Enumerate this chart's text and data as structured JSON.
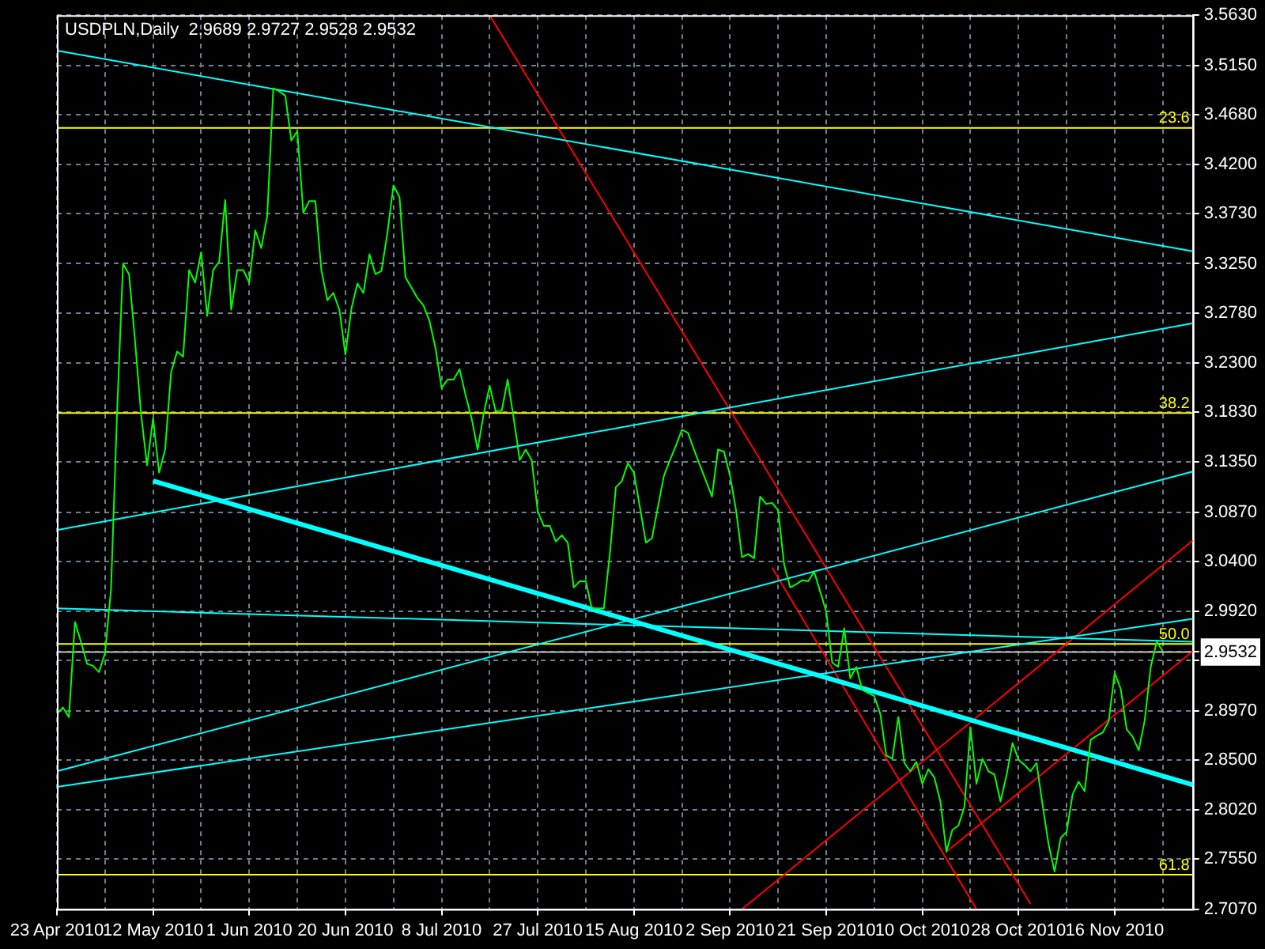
{
  "chart_data": {
    "type": "line",
    "title": "USDPLN,Daily  2.9689 2.9727 2.9528 2.9532",
    "categories": [
      "23 Apr 2010",
      null,
      null,
      null,
      null,
      null,
      null,
      null,
      null,
      null,
      null,
      null,
      null,
      null,
      null,
      null,
      "12 May 2010",
      null,
      null,
      null,
      null,
      null,
      null,
      null,
      null,
      null,
      null,
      null,
      null,
      null,
      null,
      null,
      "1 Jun 2010",
      null,
      null,
      null,
      null,
      null,
      null,
      null,
      null,
      null,
      null,
      null,
      null,
      null,
      null,
      null,
      "20 Jun 2010",
      null,
      null,
      null,
      null,
      null,
      null,
      null,
      null,
      null,
      null,
      null,
      null,
      null,
      null,
      null,
      "8 Jul 2010",
      null,
      null,
      null,
      null,
      null,
      null,
      null,
      null,
      null,
      null,
      null,
      null,
      null,
      null,
      null,
      "27 Jul 2010",
      null,
      null,
      null,
      null,
      null,
      null,
      null,
      null,
      null,
      null,
      null,
      null,
      null,
      null,
      null,
      "15 Aug 2010",
      null,
      null,
      null,
      null,
      null,
      null,
      null,
      null,
      null,
      null,
      null,
      null,
      null,
      null,
      null,
      "2 Sep 2010",
      null,
      null,
      null,
      null,
      null,
      null,
      null,
      null,
      null,
      null,
      null,
      null,
      null,
      null,
      null,
      "21 Sep 2010",
      null,
      null,
      null,
      null,
      null,
      null,
      null,
      null,
      null,
      null,
      null,
      null,
      null,
      null,
      null,
      "10 Oct 2010",
      null,
      null,
      null,
      null,
      null,
      null,
      null,
      null,
      null,
      null,
      null,
      null,
      null,
      null,
      null,
      "28 Oct 2010",
      null,
      null,
      null,
      null,
      null,
      null,
      null,
      null,
      null,
      null,
      null,
      null,
      null,
      null,
      null,
      "16 Nov 2010",
      null,
      null,
      null,
      null,
      null,
      null,
      null,
      null,
      null,
      null,
      null,
      null,
      null
    ],
    "ylim": [
      2.707,
      3.563
    ],
    "yticks": [
      {
        "value": 2.707,
        "label": "2.7070"
      },
      {
        "value": 2.755,
        "label": "2.7550"
      },
      {
        "value": 2.802,
        "label": "2.8020"
      },
      {
        "value": 2.85,
        "label": "2.8500"
      },
      {
        "value": 2.897,
        "label": "2.8970"
      },
      {
        "value": 2.945,
        "label": null
      },
      {
        "value": 2.9532,
        "label": "2.9532"
      },
      {
        "value": 2.992,
        "label": "2.9920"
      },
      {
        "value": 3.04,
        "label": "3.0400"
      },
      {
        "value": 3.087,
        "label": "3.0870"
      },
      {
        "value": 3.135,
        "label": "3.1350"
      },
      {
        "value": 3.183,
        "label": "3.1830"
      },
      {
        "value": 3.23,
        "label": "3.2300"
      },
      {
        "value": 3.278,
        "label": "3.2780"
      },
      {
        "value": 3.325,
        "label": "3.3250"
      },
      {
        "value": 3.373,
        "label": "3.3730"
      },
      {
        "value": 3.42,
        "label": "3.4200"
      },
      {
        "value": 3.468,
        "label": "3.4680"
      },
      {
        "value": 3.515,
        "label": "3.5150"
      },
      {
        "value": 3.563,
        "label": "3.5630"
      }
    ],
    "grid": true,
    "marker": "none",
    "line_style": "solid",
    "series": [
      {
        "color": "#00ff00",
        "values": [
          2.894,
          2.9,
          2.891,
          2.982,
          2.963,
          2.942,
          2.94,
          2.934,
          2.952,
          3.013,
          3.181,
          3.325,
          3.315,
          3.251,
          3.181,
          3.132,
          3.177,
          3.125,
          3.147,
          3.221,
          3.241,
          3.236,
          3.319,
          3.307,
          3.336,
          3.275,
          3.319,
          3.327,
          3.386,
          3.281,
          3.319,
          3.319,
          3.307,
          3.357,
          3.34,
          3.371,
          3.493,
          3.49,
          3.486,
          3.443,
          3.452,
          3.374,
          3.385,
          3.385,
          3.319,
          3.29,
          3.297,
          3.281,
          3.238,
          3.282,
          3.306,
          3.297,
          3.334,
          3.315,
          3.318,
          3.355,
          3.4,
          3.389,
          3.312,
          3.302,
          3.292,
          3.285,
          3.27,
          3.244,
          3.206,
          3.214,
          3.214,
          3.224,
          3.199,
          3.177,
          3.147,
          3.181,
          3.208,
          3.184,
          3.184,
          3.214,
          3.177,
          3.137,
          3.147,
          3.137,
          3.088,
          3.074,
          3.074,
          3.059,
          3.065,
          3.058,
          3.015,
          3.021,
          3.021,
          2.995,
          2.995,
          2.995,
          3.047,
          3.111,
          3.117,
          3.134,
          3.125,
          3.092,
          3.058,
          3.062,
          3.092,
          3.122,
          3.137,
          3.151,
          3.166,
          3.163,
          3.147,
          3.132,
          3.117,
          3.102,
          3.147,
          3.145,
          3.122,
          3.089,
          3.044,
          3.047,
          3.043,
          3.102,
          3.095,
          3.096,
          3.089,
          3.037,
          3.015,
          3.018,
          3.022,
          3.021,
          3.03,
          3.011,
          2.992,
          2.943,
          2.939,
          2.976,
          2.928,
          2.939,
          2.917,
          2.914,
          2.911,
          2.894,
          2.854,
          2.851,
          2.891,
          2.847,
          2.839,
          2.848,
          2.827,
          2.841,
          2.833,
          2.81,
          2.762,
          2.783,
          2.787,
          2.805,
          2.881,
          2.827,
          2.851,
          2.839,
          2.836,
          2.81,
          2.835,
          2.866,
          2.85,
          2.845,
          2.839,
          2.847,
          2.807,
          2.769,
          2.743,
          2.775,
          2.781,
          2.817,
          2.829,
          2.82,
          2.869,
          2.873,
          2.876,
          2.887,
          2.933,
          2.918,
          2.879,
          2.872,
          2.859,
          2.888,
          2.939,
          2.963,
          2.954,
          null,
          null,
          null,
          null,
          null
        ]
      },
      {
        "color": "#00ffff",
        "values": [
          3.529,
          null,
          null,
          null,
          null,
          null,
          null,
          null,
          null,
          null,
          null,
          null,
          null,
          null,
          null,
          null,
          null,
          null,
          null,
          null,
          null,
          null,
          null,
          null,
          null,
          null,
          null,
          null,
          null,
          null,
          null,
          null,
          null,
          null,
          null,
          null,
          null,
          null,
          null,
          null,
          null,
          null,
          null,
          null,
          null,
          null,
          null,
          null,
          null,
          null,
          null,
          null,
          null,
          null,
          null,
          null,
          null,
          null,
          null,
          null,
          null,
          null,
          null,
          null,
          null,
          null,
          null,
          null,
          null,
          null,
          null,
          null,
          null,
          null,
          null,
          null,
          null,
          null,
          null,
          null,
          null,
          null,
          null,
          null,
          null,
          null,
          null,
          null,
          null,
          null,
          null,
          null,
          null,
          null,
          null,
          null,
          null,
          null,
          null,
          null,
          null,
          null,
          null,
          null,
          null,
          null,
          null,
          null,
          null,
          null,
          null,
          null,
          null,
          null,
          null,
          null,
          null,
          null,
          null,
          null,
          null,
          null,
          null,
          null,
          null,
          null,
          null,
          null,
          null,
          null,
          null,
          null,
          null,
          null,
          null,
          null,
          null,
          null,
          null,
          null,
          null,
          null,
          null,
          null,
          null,
          null,
          null,
          null,
          null,
          null,
          null,
          null,
          null,
          null,
          null,
          null,
          null,
          null,
          null,
          null,
          null,
          null,
          null,
          null,
          null,
          null,
          null,
          null,
          null,
          null,
          null,
          null,
          null,
          null,
          null,
          null,
          null,
          null,
          null,
          null,
          null,
          null,
          null,
          null,
          null,
          null,
          null,
          null,
          null,
          3.337
        ]
      },
      {
        "color": "#00ffff",
        "values": [
          3.07,
          null,
          null,
          null,
          null,
          null,
          null,
          null,
          null,
          null,
          null,
          null,
          null,
          null,
          null,
          null,
          null,
          null,
          null,
          null,
          null,
          null,
          null,
          null,
          null,
          null,
          null,
          null,
          null,
          null,
          null,
          null,
          null,
          null,
          null,
          null,
          null,
          null,
          null,
          null,
          null,
          null,
          null,
          null,
          null,
          null,
          null,
          null,
          null,
          null,
          null,
          null,
          null,
          null,
          null,
          null,
          null,
          null,
          null,
          null,
          null,
          null,
          null,
          null,
          null,
          null,
          null,
          null,
          null,
          null,
          null,
          null,
          null,
          null,
          null,
          null,
          null,
          null,
          null,
          null,
          null,
          null,
          null,
          null,
          null,
          null,
          null,
          null,
          null,
          null,
          null,
          null,
          null,
          null,
          null,
          null,
          null,
          null,
          null,
          null,
          null,
          null,
          null,
          null,
          null,
          null,
          null,
          null,
          null,
          null,
          null,
          null,
          null,
          null,
          null,
          null,
          null,
          null,
          null,
          null,
          null,
          null,
          null,
          null,
          null,
          null,
          null,
          null,
          null,
          null,
          null,
          null,
          null,
          null,
          null,
          null,
          null,
          null,
          null,
          null,
          null,
          null,
          null,
          null,
          null,
          null,
          null,
          null,
          null,
          null,
          null,
          null,
          null,
          null,
          null,
          null,
          null,
          null,
          null,
          null,
          null,
          null,
          null,
          null,
          null,
          null,
          null,
          null,
          null,
          null,
          null,
          null,
          null,
          null,
          null,
          null,
          null,
          null,
          null,
          null,
          null,
          null,
          null,
          null,
          null,
          null,
          null,
          null,
          null,
          3.268
        ]
      },
      {
        "color": "#00ffff",
        "values": [
          null,
          null,
          null,
          null,
          null,
          null,
          null,
          null,
          null,
          null,
          null,
          null,
          null,
          null,
          null,
          null,
          3.117,
          null,
          null,
          null,
          null,
          null,
          null,
          null,
          null,
          null,
          null,
          null,
          null,
          null,
          null,
          null,
          null,
          null,
          null,
          null,
          null,
          null,
          null,
          null,
          null,
          null,
          null,
          null,
          null,
          null,
          null,
          null,
          null,
          null,
          null,
          null,
          null,
          null,
          null,
          null,
          null,
          null,
          null,
          null,
          null,
          null,
          null,
          null,
          null,
          null,
          null,
          null,
          null,
          null,
          null,
          null,
          null,
          null,
          null,
          null,
          null,
          null,
          null,
          null,
          null,
          null,
          null,
          null,
          null,
          null,
          null,
          null,
          null,
          null,
          null,
          null,
          null,
          null,
          null,
          null,
          null,
          null,
          null,
          null,
          null,
          null,
          null,
          null,
          null,
          null,
          null,
          null,
          null,
          null,
          null,
          null,
          null,
          null,
          null,
          null,
          null,
          null,
          null,
          null,
          null,
          null,
          null,
          null,
          null,
          null,
          null,
          null,
          null,
          null,
          null,
          null,
          null,
          null,
          null,
          null,
          null,
          null,
          null,
          null,
          null,
          null,
          null,
          null,
          null,
          null,
          null,
          null,
          null,
          null,
          null,
          null,
          null,
          null,
          null,
          null,
          null,
          null,
          null,
          null,
          null,
          null,
          null,
          null,
          null,
          null,
          null,
          null,
          null,
          null,
          null,
          null,
          null,
          null,
          null,
          null,
          null,
          null,
          null,
          null,
          null,
          null,
          null,
          null,
          null,
          null,
          null,
          null,
          null,
          2.826
        ]
      },
      {
        "color": "#00ffff",
        "values": [
          2.995,
          null,
          null,
          null,
          null,
          null,
          null,
          null,
          null,
          null,
          null,
          null,
          null,
          null,
          null,
          null,
          null,
          null,
          null,
          null,
          null,
          null,
          null,
          null,
          null,
          null,
          null,
          null,
          null,
          null,
          null,
          null,
          null,
          null,
          null,
          null,
          null,
          null,
          null,
          null,
          null,
          null,
          null,
          null,
          null,
          null,
          null,
          null,
          null,
          null,
          null,
          null,
          null,
          null,
          null,
          null,
          null,
          null,
          null,
          null,
          null,
          null,
          null,
          null,
          null,
          null,
          null,
          null,
          null,
          null,
          null,
          null,
          null,
          null,
          null,
          null,
          null,
          null,
          null,
          null,
          null,
          null,
          null,
          null,
          null,
          null,
          null,
          null,
          null,
          null,
          null,
          null,
          null,
          null,
          null,
          null,
          null,
          null,
          null,
          null,
          null,
          null,
          null,
          null,
          null,
          null,
          null,
          null,
          null,
          null,
          null,
          null,
          null,
          null,
          null,
          null,
          null,
          null,
          null,
          null,
          null,
          null,
          null,
          null,
          null,
          null,
          null,
          null,
          null,
          null,
          null,
          null,
          null,
          null,
          null,
          null,
          null,
          null,
          null,
          null,
          null,
          null,
          null,
          null,
          null,
          null,
          null,
          null,
          null,
          null,
          null,
          null,
          null,
          null,
          null,
          null,
          null,
          null,
          null,
          null,
          null,
          null,
          null,
          null,
          null,
          null,
          null,
          null,
          null,
          null,
          null,
          null,
          null,
          null,
          null,
          null,
          null,
          null,
          null,
          null,
          null,
          null,
          null,
          null,
          null,
          null,
          null,
          null,
          null,
          2.963
        ]
      },
      {
        "color": "#00ffff",
        "values": [
          2.839,
          null,
          null,
          null,
          null,
          null,
          null,
          null,
          null,
          null,
          null,
          null,
          null,
          null,
          null,
          null,
          null,
          null,
          null,
          null,
          null,
          null,
          null,
          null,
          null,
          null,
          null,
          null,
          null,
          null,
          null,
          null,
          null,
          null,
          null,
          null,
          null,
          null,
          null,
          null,
          null,
          null,
          null,
          null,
          null,
          null,
          null,
          null,
          null,
          null,
          null,
          null,
          null,
          null,
          null,
          null,
          null,
          null,
          null,
          null,
          null,
          null,
          null,
          null,
          null,
          null,
          null,
          null,
          null,
          null,
          null,
          null,
          null,
          null,
          null,
          null,
          null,
          null,
          null,
          null,
          null,
          null,
          null,
          null,
          null,
          null,
          null,
          null,
          null,
          null,
          null,
          null,
          null,
          null,
          null,
          null,
          null,
          null,
          null,
          null,
          null,
          null,
          null,
          null,
          null,
          null,
          null,
          null,
          null,
          null,
          null,
          null,
          null,
          null,
          null,
          null,
          null,
          null,
          null,
          null,
          null,
          null,
          null,
          null,
          null,
          null,
          null,
          null,
          null,
          null,
          null,
          null,
          null,
          null,
          null,
          null,
          null,
          null,
          null,
          null,
          null,
          null,
          null,
          null,
          null,
          null,
          null,
          null,
          null,
          null,
          null,
          null,
          null,
          null,
          null,
          null,
          null,
          null,
          null,
          null,
          null,
          null,
          null,
          null,
          null,
          null,
          null,
          null,
          null,
          null,
          null,
          null,
          null,
          null,
          null,
          null,
          null,
          null,
          null,
          null,
          null,
          null,
          null,
          null,
          null,
          null,
          null,
          null,
          null,
          3.126
        ]
      },
      {
        "color": "#00ffff",
        "values": [
          2.824,
          null,
          null,
          null,
          null,
          null,
          null,
          null,
          null,
          null,
          null,
          null,
          null,
          null,
          null,
          null,
          null,
          null,
          null,
          null,
          null,
          null,
          null,
          null,
          null,
          null,
          null,
          null,
          null,
          null,
          null,
          null,
          null,
          null,
          null,
          null,
          null,
          null,
          null,
          null,
          null,
          null,
          null,
          null,
          null,
          null,
          null,
          null,
          null,
          null,
          null,
          null,
          null,
          null,
          null,
          null,
          null,
          null,
          null,
          null,
          null,
          null,
          null,
          null,
          null,
          null,
          null,
          null,
          null,
          null,
          null,
          null,
          null,
          null,
          null,
          null,
          null,
          null,
          null,
          null,
          null,
          null,
          null,
          null,
          null,
          null,
          null,
          null,
          null,
          null,
          null,
          null,
          null,
          null,
          null,
          null,
          null,
          null,
          null,
          null,
          null,
          null,
          null,
          null,
          null,
          null,
          null,
          null,
          null,
          null,
          null,
          null,
          null,
          null,
          null,
          null,
          null,
          null,
          null,
          null,
          null,
          null,
          null,
          null,
          null,
          null,
          null,
          null,
          null,
          null,
          null,
          null,
          null,
          null,
          null,
          null,
          null,
          null,
          null,
          null,
          null,
          null,
          null,
          null,
          null,
          null,
          null,
          null,
          null,
          null,
          null,
          null,
          null,
          null,
          null,
          null,
          null,
          null,
          null,
          null,
          null,
          null,
          null,
          null,
          null,
          null,
          null,
          null,
          null,
          null,
          null,
          null,
          null,
          null,
          null,
          null,
          null,
          null,
          null,
          null,
          null,
          null,
          null,
          null,
          null,
          null,
          null,
          null,
          null,
          2.985
        ]
      },
      {
        "color": "#ff0000",
        "values": [
          null,
          null,
          null,
          null,
          null,
          null,
          null,
          null,
          null,
          null,
          null,
          null,
          null,
          null,
          null,
          null,
          null,
          null,
          null,
          null,
          null,
          null,
          null,
          null,
          null,
          null,
          null,
          null,
          null,
          null,
          null,
          null,
          null,
          null,
          null,
          null,
          null,
          null,
          null,
          null,
          null,
          null,
          null,
          null,
          null,
          null,
          null,
          null,
          null,
          null,
          null,
          null,
          null,
          null,
          null,
          null,
          null,
          null,
          null,
          null,
          null,
          null,
          null,
          null,
          null,
          null,
          null,
          null,
          null,
          null,
          null,
          null,
          3.563,
          null,
          null,
          null,
          null,
          null,
          null,
          null,
          null,
          null,
          null,
          null,
          null,
          null,
          null,
          null,
          null,
          null,
          null,
          null,
          null,
          null,
          null,
          null,
          null,
          null,
          null,
          null,
          null,
          null,
          null,
          null,
          null,
          null,
          null,
          null,
          null,
          null,
          null,
          null,
          null,
          null,
          null,
          null,
          null,
          null,
          null,
          null,
          null,
          null,
          null,
          null,
          null,
          null,
          null,
          null,
          null,
          null,
          null,
          null,
          null,
          null,
          null,
          null,
          null,
          null,
          null,
          null,
          null,
          null,
          null,
          null,
          null,
          null,
          null,
          null,
          null,
          null,
          null,
          null,
          null,
          null,
          null,
          null,
          null,
          null,
          null,
          null,
          null,
          null,
          2.712,
          null,
          null,
          null,
          null,
          null,
          null,
          null,
          null,
          null,
          null,
          null,
          null,
          null,
          null,
          null,
          null,
          null,
          null,
          null,
          null,
          null,
          null,
          null,
          null,
          null,
          null,
          null
        ]
      },
      {
        "color": "#ff0000",
        "values": [
          null,
          null,
          null,
          null,
          null,
          null,
          null,
          null,
          null,
          null,
          null,
          null,
          null,
          null,
          null,
          null,
          null,
          null,
          null,
          null,
          null,
          null,
          null,
          null,
          null,
          null,
          null,
          null,
          null,
          null,
          null,
          null,
          null,
          null,
          null,
          null,
          null,
          null,
          null,
          null,
          null,
          null,
          null,
          null,
          null,
          null,
          null,
          null,
          null,
          null,
          null,
          null,
          null,
          null,
          null,
          null,
          null,
          null,
          null,
          null,
          null,
          null,
          null,
          null,
          null,
          null,
          null,
          null,
          null,
          null,
          null,
          null,
          null,
          null,
          null,
          null,
          null,
          null,
          null,
          null,
          null,
          null,
          null,
          null,
          null,
          null,
          null,
          null,
          null,
          null,
          null,
          null,
          null,
          null,
          null,
          null,
          null,
          null,
          null,
          null,
          null,
          null,
          null,
          null,
          null,
          null,
          null,
          null,
          null,
          null,
          null,
          null,
          null,
          null,
          null,
          null,
          null,
          null,
          null,
          3.034,
          null,
          null,
          null,
          null,
          null,
          null,
          null,
          null,
          null,
          null,
          null,
          null,
          null,
          null,
          null,
          null,
          null,
          null,
          null,
          null,
          null,
          null,
          null,
          null,
          null,
          null,
          null,
          null,
          null,
          null,
          null,
          null,
          null,
          2.707,
          null,
          null,
          null,
          null,
          null,
          null,
          null,
          null,
          null,
          null,
          null,
          null,
          null,
          null,
          null,
          null,
          null,
          null,
          null,
          null,
          null,
          null,
          null,
          null,
          null,
          null,
          null,
          null,
          null,
          null,
          null,
          null,
          null,
          null,
          null,
          null
        ]
      },
      {
        "color": "#ff0000",
        "values": [
          null,
          null,
          null,
          null,
          null,
          null,
          null,
          null,
          null,
          null,
          null,
          null,
          null,
          null,
          null,
          null,
          null,
          null,
          null,
          null,
          null,
          null,
          null,
          null,
          null,
          null,
          null,
          null,
          null,
          null,
          null,
          null,
          null,
          null,
          null,
          null,
          null,
          null,
          null,
          null,
          null,
          null,
          null,
          null,
          null,
          null,
          null,
          null,
          null,
          null,
          null,
          null,
          null,
          null,
          null,
          null,
          null,
          null,
          null,
          null,
          null,
          null,
          null,
          null,
          null,
          null,
          null,
          null,
          null,
          null,
          null,
          null,
          null,
          null,
          null,
          null,
          null,
          null,
          null,
          null,
          null,
          null,
          null,
          null,
          null,
          null,
          null,
          null,
          null,
          null,
          null,
          null,
          null,
          null,
          null,
          null,
          null,
          null,
          null,
          null,
          null,
          null,
          null,
          null,
          null,
          null,
          null,
          null,
          null,
          null,
          null,
          null,
          null,
          null,
          2.707,
          null,
          null,
          null,
          null,
          null,
          null,
          null,
          null,
          null,
          null,
          null,
          null,
          null,
          null,
          null,
          null,
          null,
          null,
          null,
          null,
          null,
          null,
          null,
          null,
          null,
          null,
          null,
          null,
          null,
          null,
          null,
          null,
          null,
          null,
          null,
          null,
          null,
          null,
          null,
          null,
          null,
          null,
          null,
          null,
          null,
          null,
          null,
          null,
          null,
          null,
          null,
          null,
          null,
          null,
          null,
          null,
          null,
          null,
          null,
          null,
          null,
          null,
          null,
          null,
          null,
          null,
          null,
          null,
          null,
          null,
          null,
          null,
          null,
          null,
          3.06
        ]
      },
      {
        "color": "#ff0000",
        "values": [
          null,
          null,
          null,
          null,
          null,
          null,
          null,
          null,
          null,
          null,
          null,
          null,
          null,
          null,
          null,
          null,
          null,
          null,
          null,
          null,
          null,
          null,
          null,
          null,
          null,
          null,
          null,
          null,
          null,
          null,
          null,
          null,
          null,
          null,
          null,
          null,
          null,
          null,
          null,
          null,
          null,
          null,
          null,
          null,
          null,
          null,
          null,
          null,
          null,
          null,
          null,
          null,
          null,
          null,
          null,
          null,
          null,
          null,
          null,
          null,
          null,
          null,
          null,
          null,
          null,
          null,
          null,
          null,
          null,
          null,
          null,
          null,
          null,
          null,
          null,
          null,
          null,
          null,
          null,
          null,
          null,
          null,
          null,
          null,
          null,
          null,
          null,
          null,
          null,
          null,
          null,
          null,
          null,
          null,
          null,
          null,
          null,
          null,
          null,
          null,
          null,
          null,
          null,
          null,
          null,
          null,
          null,
          null,
          null,
          null,
          null,
          null,
          null,
          null,
          null,
          null,
          null,
          null,
          null,
          null,
          null,
          null,
          null,
          null,
          null,
          null,
          null,
          null,
          null,
          null,
          null,
          null,
          null,
          null,
          null,
          null,
          null,
          null,
          null,
          null,
          null,
          null,
          null,
          null,
          null,
          null,
          null,
          null,
          2.762,
          null,
          null,
          null,
          null,
          null,
          null,
          null,
          null,
          null,
          null,
          null,
          null,
          null,
          null,
          null,
          null,
          null,
          null,
          null,
          null,
          null,
          null,
          null,
          null,
          null,
          null,
          null,
          null,
          null,
          null,
          null,
          null,
          null,
          null,
          null,
          null,
          null,
          null,
          null,
          null,
          2.954
        ]
      }
    ],
    "ref_lines": [
      {
        "axis": "y",
        "value": 3.455,
        "color": "#ffff00"
      },
      {
        "axis": "y",
        "value": 3.182,
        "color": "#ffff00"
      },
      {
        "axis": "y",
        "value": 2.961,
        "color": "#ffff00"
      },
      {
        "axis": "y",
        "value": 2.74,
        "color": "#ffff00"
      },
      {
        "axis": "y",
        "value": 2.9532,
        "color": "#c0c0c0"
      }
    ],
    "annotations": [
      {
        "text": "23.6",
        "y": 3.455
      },
      {
        "text": "38.2",
        "y": 3.182
      },
      {
        "text": "50.0",
        "y": 2.961
      },
      {
        "text": "61.8",
        "y": 2.74
      }
    ]
  }
}
